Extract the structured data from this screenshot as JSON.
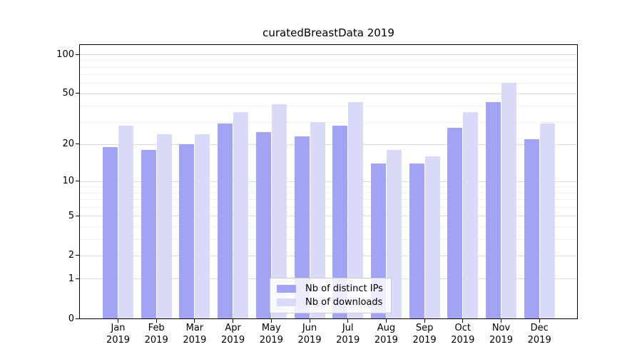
{
  "title": "curatedBreastData 2019",
  "colors": {
    "background": "#ffffff",
    "axis": "#000000",
    "grid_major": "#dcdcdc",
    "grid_minor": "#efefef",
    "distinct_ips_bar": "#a3a3f3",
    "downloads_bar": "#d9d9f8"
  },
  "chart_data": {
    "type": "bar",
    "title": "curatedBreastData 2019",
    "xlabel": "",
    "ylabel": "",
    "yscale": "log1p",
    "grid": true,
    "legend_position": "bottom-center",
    "categories": [
      "Jan 2019",
      "Feb 2019",
      "Mar 2019",
      "Apr 2019",
      "May 2019",
      "Jun 2019",
      "Jul 2019",
      "Aug 2019",
      "Sep 2019",
      "Oct 2019",
      "Nov 2019",
      "Dec 2019"
    ],
    "series": [
      {
        "name": "Nb of distinct IPs",
        "color": "#a3a3f3",
        "values": [
          19,
          18,
          20,
          29,
          25,
          23,
          28,
          14,
          14,
          27,
          43,
          22
        ]
      },
      {
        "name": "Nb of downloads",
        "color": "#d9d9f8",
        "values": [
          28,
          24,
          24,
          36,
          41,
          30,
          43,
          18,
          16,
          36,
          60,
          29
        ]
      }
    ],
    "yticks": [
      0,
      1,
      2,
      5,
      10,
      20,
      50,
      100
    ],
    "minor_yticks": [
      3,
      4,
      6,
      7,
      8,
      9,
      30,
      40,
      60,
      70,
      80,
      90
    ],
    "ylim": [
      0,
      119
    ]
  }
}
